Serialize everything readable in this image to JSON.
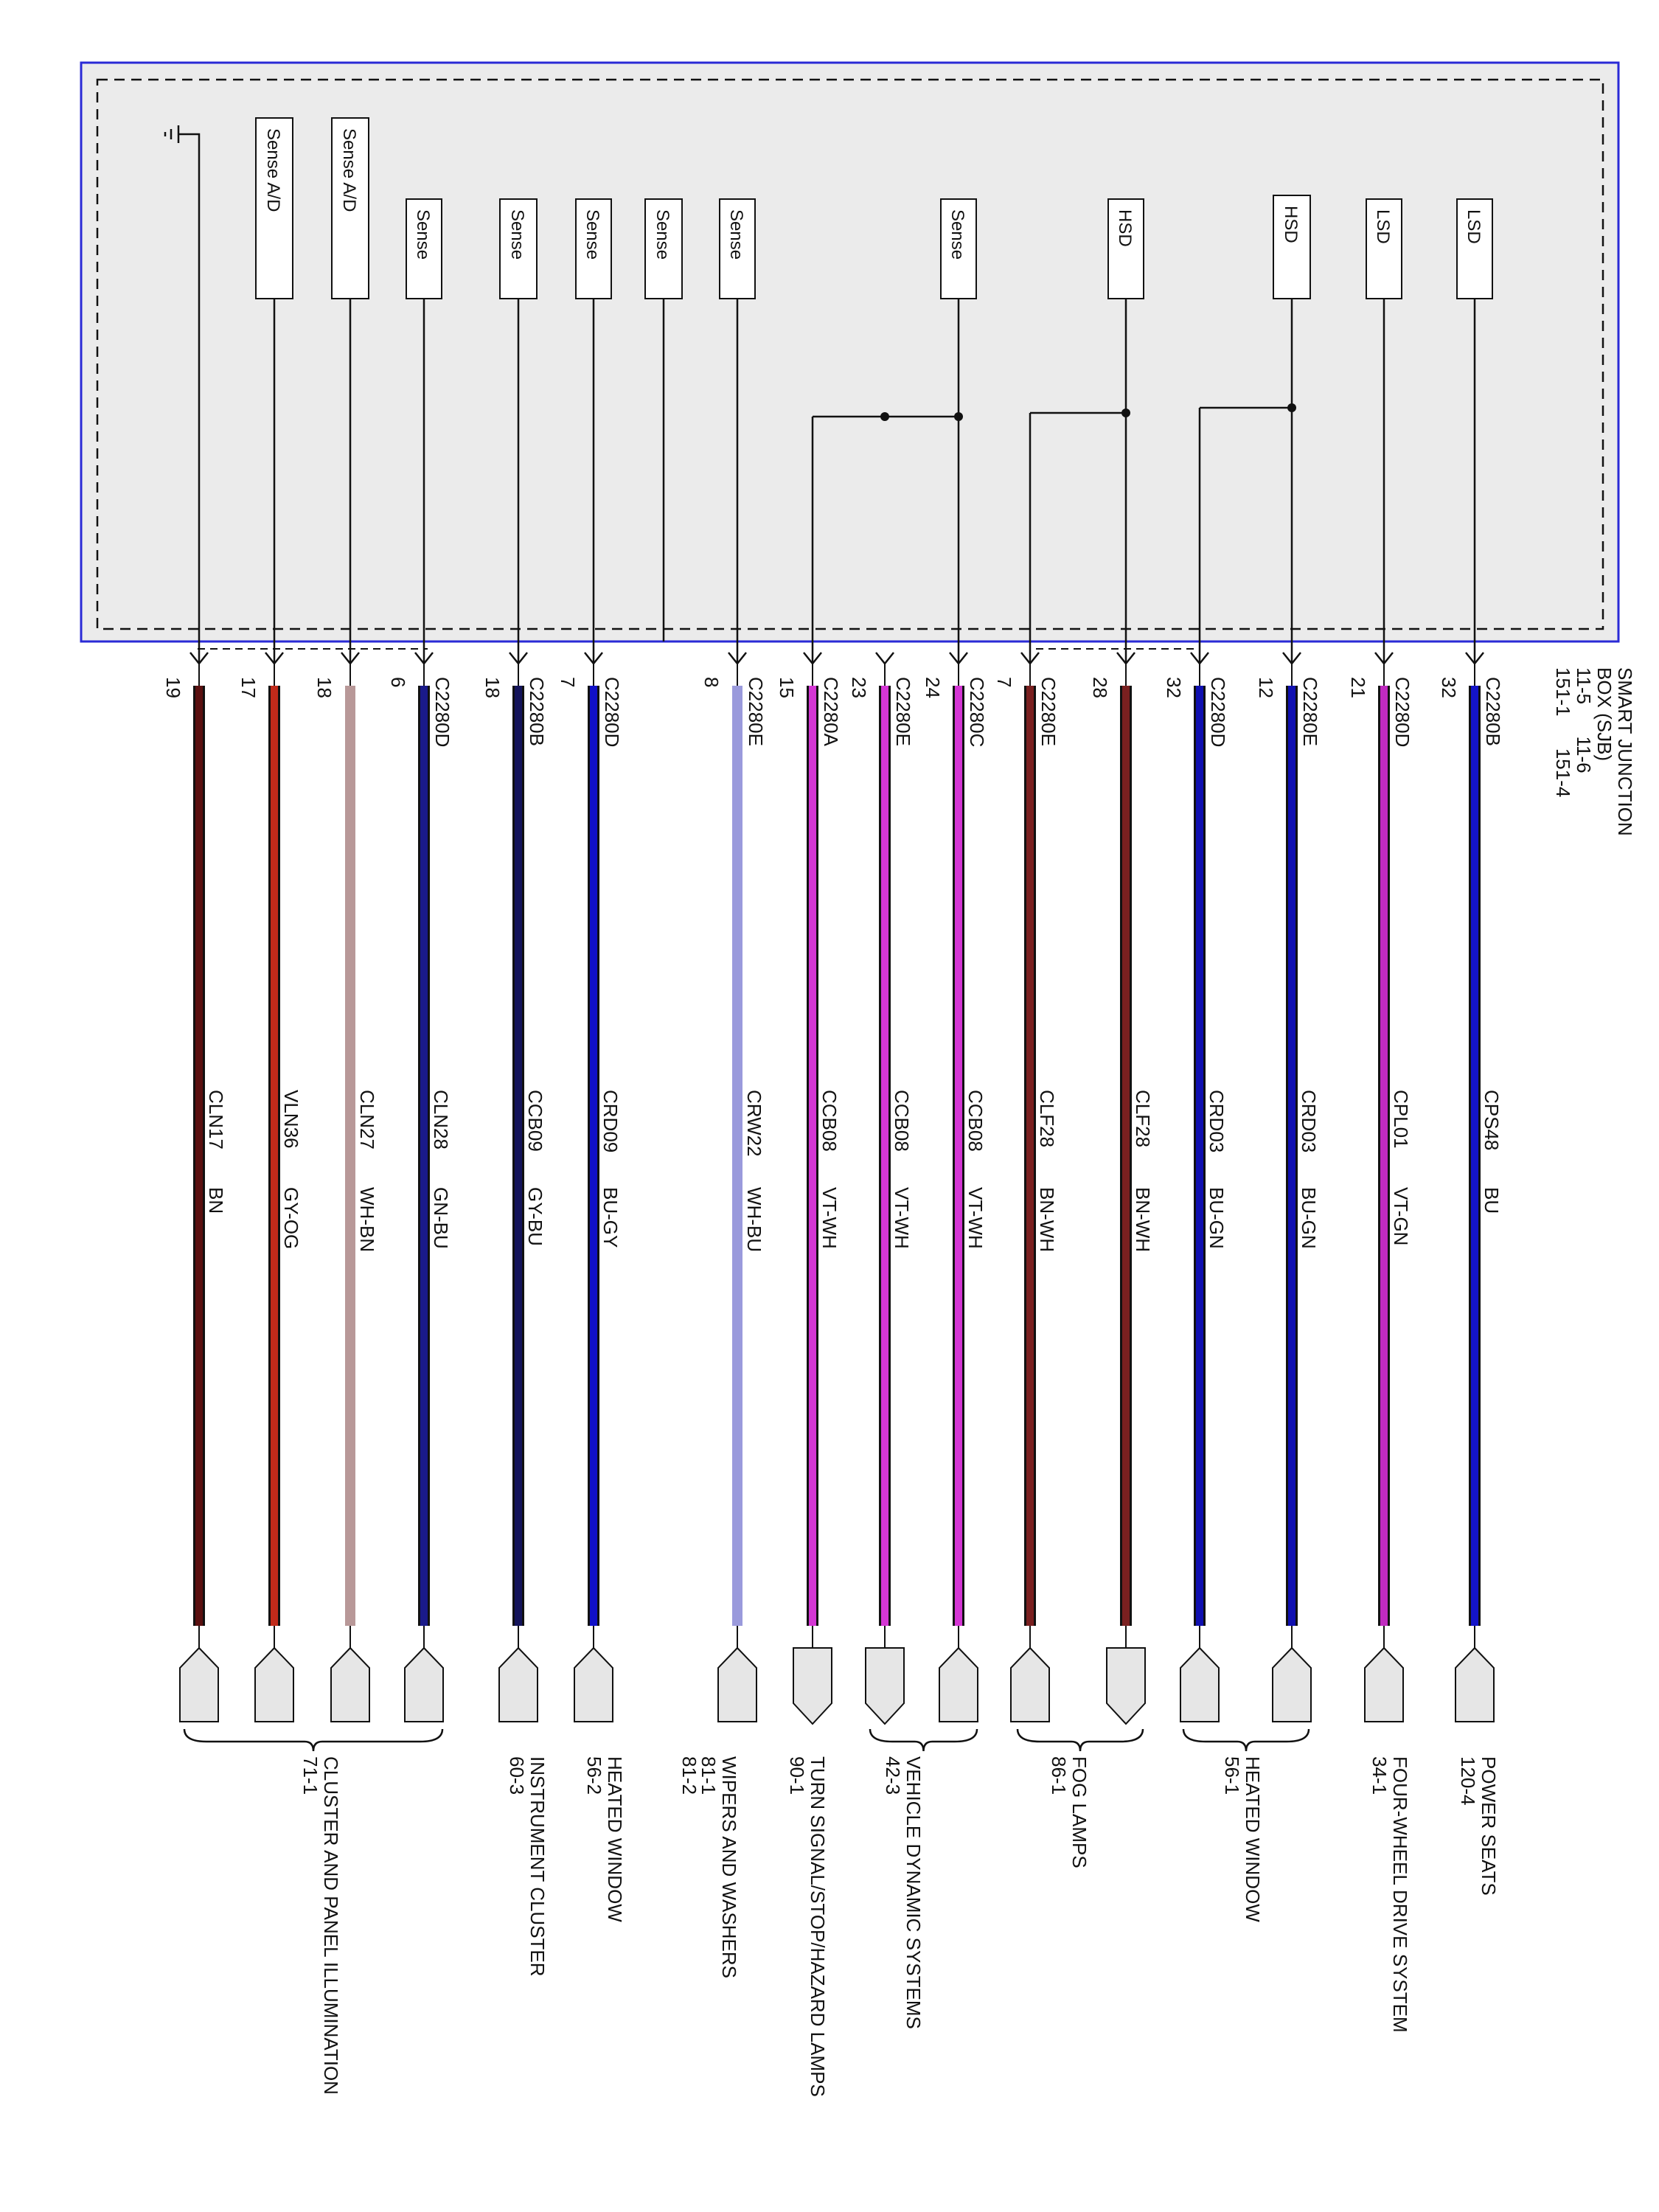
{
  "module": {
    "title_lines": [
      "SMART JUNCTION",
      "BOX (SJB)",
      "11-5      11-6",
      "151-1      151-4"
    ]
  },
  "colors": {
    "frame": "#2a2ad6",
    "module_fill": "#ebebeb",
    "BN": "#5a1010",
    "GY-OG": "#c02a1a",
    "WH-BN": "#b89898",
    "GN-BU": "#1a1a8a",
    "GY-BU": "#14145a",
    "BU-GY": "#1010c8",
    "WH-BU": "#9a9adc",
    "VT-WH": "#d436d4",
    "BN-WH": "#7a2020",
    "BU-GN": "#1010b0",
    "VT-GN": "#c02ac0",
    "BU": "#1414c8"
  },
  "circuits": [
    {
      "pin": "19",
      "connector": "",
      "circuit": "CLN17",
      "wire_color": "BN",
      "device": "ground",
      "destination": 0
    },
    {
      "pin": "17",
      "connector": "",
      "circuit": "VLN36",
      "wire_color": "GY-OG",
      "device": "Sense A/D",
      "destination": 0
    },
    {
      "pin": "18",
      "connector": "",
      "circuit": "CLN27",
      "wire_color": "WH-BN",
      "device": "Sense A/D",
      "destination": 0
    },
    {
      "pin": "6",
      "connector": "C2280D",
      "circuit": "CLN28",
      "wire_color": "GN-BU",
      "device": "Sense",
      "destination": 0
    },
    {
      "pin": "18",
      "connector": "C2280B",
      "circuit": "CCB09",
      "wire_color": "GY-BU",
      "device": "Sense",
      "destination": 1
    },
    {
      "pin": "7",
      "connector": "C2280D",
      "circuit": "CRD09",
      "wire_color": "BU-GY",
      "device": "Sense",
      "destination": 2
    },
    {
      "pin": "",
      "connector": "",
      "circuit": "",
      "wire_color": "",
      "device": "Sense",
      "destination": -1
    },
    {
      "pin": "8",
      "connector": "C2280E",
      "circuit": "CRW22",
      "wire_color": "WH-BU",
      "device": "Sense",
      "destination": 3
    },
    {
      "pin": "15",
      "connector": "C2280A",
      "circuit": "CCB08",
      "wire_color": "VT-WH",
      "device": "",
      "destination": 4
    },
    {
      "pin": "23",
      "connector": "C2280E",
      "circuit": "CCB08",
      "wire_color": "VT-WH",
      "device": "",
      "destination": 5
    },
    {
      "pin": "24",
      "connector": "C2280C",
      "circuit": "CCB08",
      "wire_color": "VT-WH",
      "device": "Sense",
      "destination": 5
    },
    {
      "pin": "7",
      "connector": "C2280E",
      "circuit": "CLF28",
      "wire_color": "BN-WH",
      "device": "",
      "destination": 6
    },
    {
      "pin": "28",
      "connector": "",
      "circuit": "CLF28",
      "wire_color": "BN-WH",
      "device": "HSD",
      "destination": 6
    },
    {
      "pin": "32",
      "connector": "C2280D",
      "circuit": "CRD03",
      "wire_color": "BU-GN",
      "device": "",
      "destination": 7
    },
    {
      "pin": "12",
      "connector": "C2280E",
      "circuit": "CRD03",
      "wire_color": "BU-GN",
      "device": "HSD",
      "destination": 7
    },
    {
      "pin": "21",
      "connector": "C2280D",
      "circuit": "CPL01",
      "wire_color": "VT-GN",
      "device": "LSD",
      "destination": 8
    },
    {
      "pin": "32",
      "connector": "C2280B",
      "circuit": "CPS48",
      "wire_color": "BU",
      "device": "LSD",
      "destination": 9
    }
  ],
  "destinations": [
    {
      "name": "CLUSTER AND PANEL ILLUMINATION",
      "ref": "71-1"
    },
    {
      "name": "INSTRUMENT CLUSTER",
      "ref": "60-3"
    },
    {
      "name": "HEATED WINDOW",
      "ref": "56-2"
    },
    {
      "name": "WIPERS AND WASHERS",
      "ref": "81-1\n81-2"
    },
    {
      "name": "TURN SIGNAL/STOP/HAZARD LAMPS",
      "ref": "90-1"
    },
    {
      "name": "VEHICLE DYNAMIC SYSTEMS",
      "ref": "42-3"
    },
    {
      "name": "FOG LAMPS",
      "ref": "86-1"
    },
    {
      "name": "HEATED WINDOW",
      "ref": "56-1"
    },
    {
      "name": "FOUR-WHEEL DRIVE SYSTEM",
      "ref": "34-1"
    },
    {
      "name": "POWER SEATS",
      "ref": "120-4"
    }
  ]
}
